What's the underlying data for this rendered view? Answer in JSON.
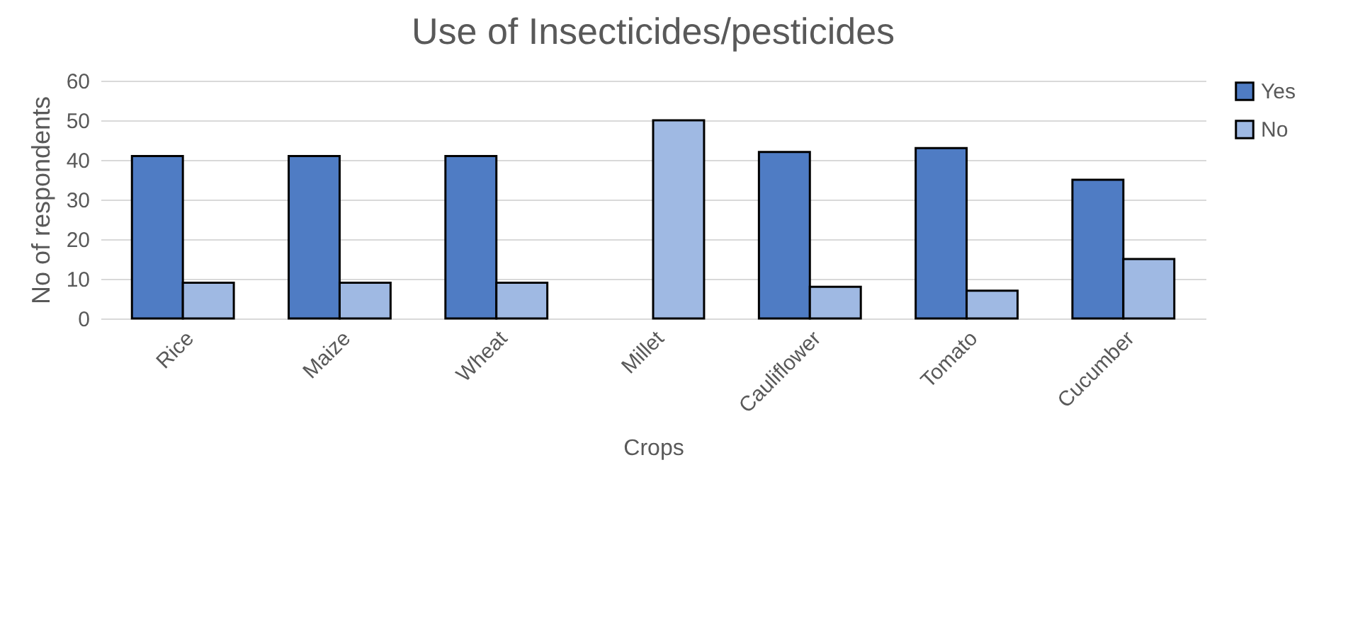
{
  "chart_data": {
    "type": "bar",
    "title": "Use of Insecticides/pesticides",
    "xlabel": "Crops",
    "ylabel": "No of respondents",
    "categories": [
      "Rice",
      "Maize",
      "Wheat",
      "Millet",
      "Cauliflower",
      "Tomato",
      "Cucumber"
    ],
    "series": [
      {
        "name": "Yes",
        "color": "#4f7cc4",
        "values": [
          41,
          41,
          41,
          null,
          42,
          43,
          35
        ]
      },
      {
        "name": "No",
        "color": "#9fb9e3",
        "values": [
          9,
          9,
          9,
          50,
          8,
          7,
          15
        ]
      }
    ],
    "ylim": [
      0,
      60
    ],
    "yticks": [
      0,
      10,
      20,
      30,
      40,
      50,
      60
    ],
    "grid": "y",
    "legend": "right"
  }
}
